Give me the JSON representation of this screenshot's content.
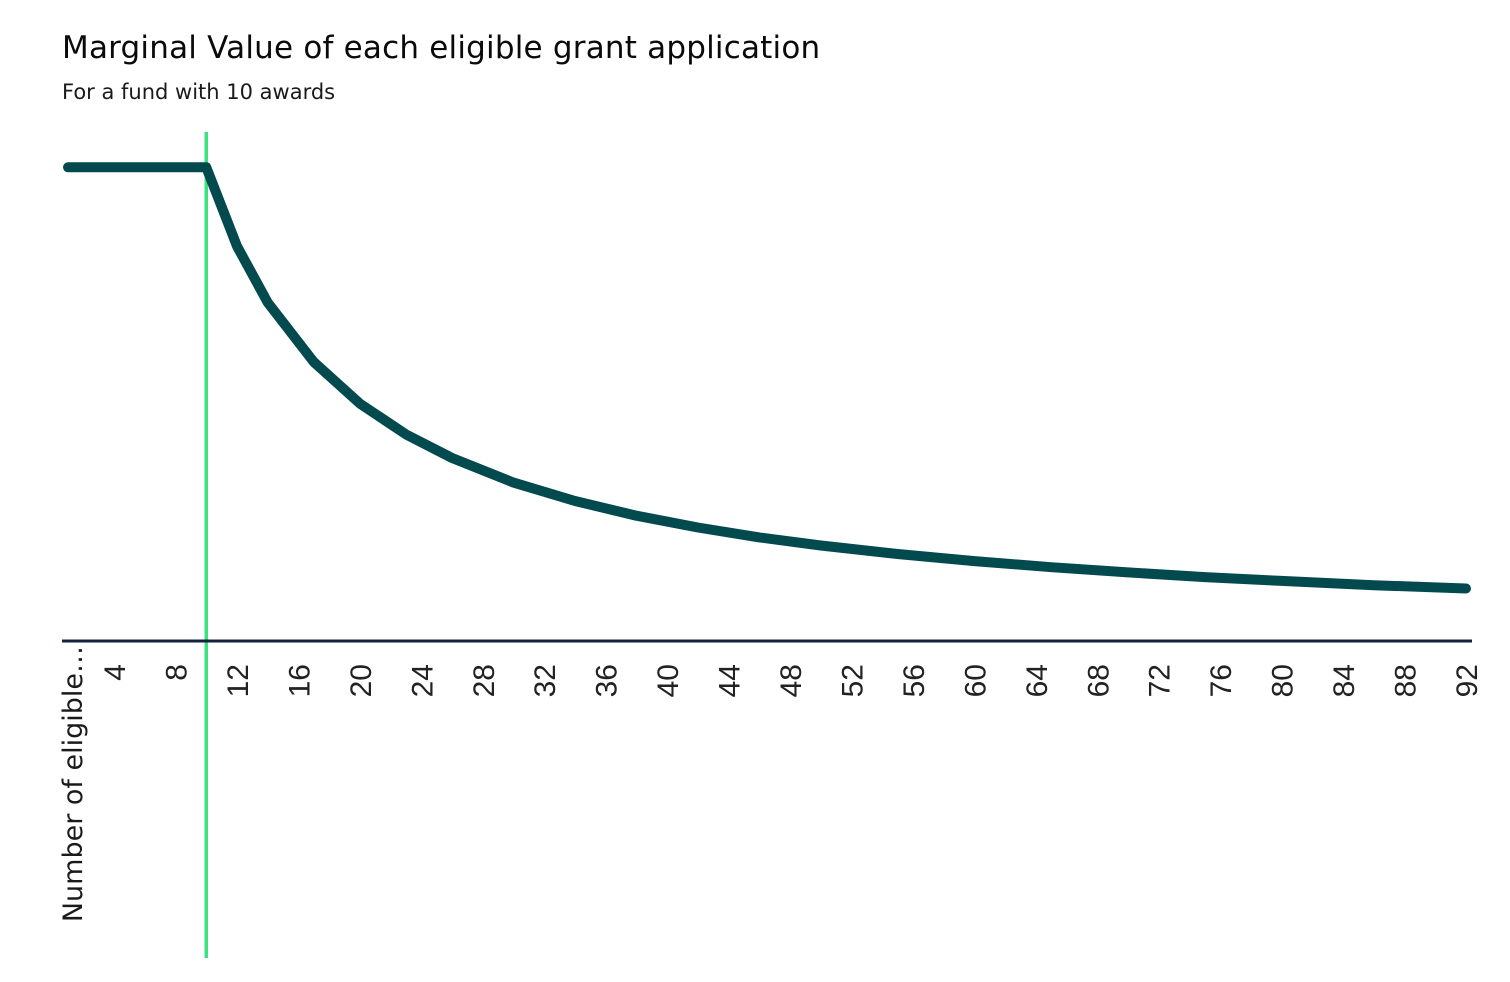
{
  "title": "Marginal Value of each eligible grant application",
  "subtitle": "For a fund with 10 awards",
  "chart_data": {
    "type": "line",
    "title": "Marginal Value of each eligible grant application",
    "subtitle": "For a fund with 10 awards",
    "xlabel": "Number of eligible…",
    "ylabel": "",
    "xlim": [
      1,
      92
    ],
    "ylim": [
      0,
      1.1
    ],
    "grid": false,
    "legend": "none",
    "x_ticks": [
      4,
      8,
      12,
      16,
      20,
      24,
      28,
      32,
      36,
      40,
      44,
      48,
      52,
      56,
      60,
      64,
      68,
      72,
      76,
      80,
      84,
      88,
      92
    ],
    "reference_line": {
      "x": 10,
      "color": "#3ee07f"
    },
    "series": [
      {
        "color": "#034a4f",
        "x": [
          1,
          10,
          12,
          14,
          17,
          20,
          23,
          26,
          30,
          34,
          38,
          42,
          46,
          50,
          55,
          60,
          65,
          70,
          75,
          80,
          86,
          92
        ],
        "y": [
          1.0,
          1.0,
          0.833,
          0.714,
          0.588,
          0.5,
          0.435,
          0.385,
          0.333,
          0.294,
          0.263,
          0.238,
          0.217,
          0.2,
          0.182,
          0.167,
          0.154,
          0.143,
          0.133,
          0.125,
          0.116,
          0.109
        ]
      }
    ]
  }
}
